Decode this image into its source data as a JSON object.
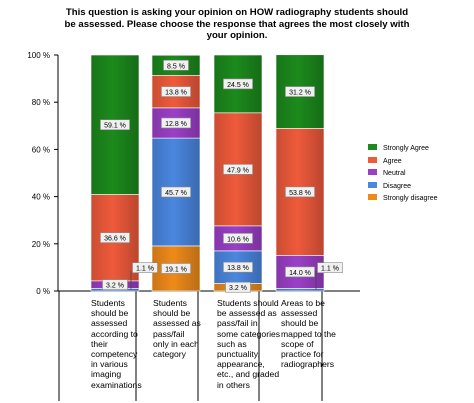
{
  "title_lines": [
    "This question is asking your opinion on HOW radiography students should",
    "be assessed.  Please choose the response that agrees the most closely with",
    "your opinion."
  ],
  "chart_data": {
    "type": "bar",
    "stacked": true,
    "orientation": "vertical",
    "categories": [
      "Students should be assessed according to their competency in various imaging examinations",
      "Students should be assessed as pass/fail only in each category",
      "Students should be assessed as pass/fail in some categories such as punctuality, appearance, etc., and graded in others",
      "Areas to be assessed should be mapped to the scope of practice for radiographers"
    ],
    "category_lines": [
      [
        "Students",
        "should be",
        "assessed",
        "according to",
        "their",
        "competency",
        "in various",
        "imaging",
        "examinations"
      ],
      [
        "Students",
        "should be",
        "assessed as",
        "pass/fail",
        "only in each",
        "category"
      ],
      [
        "Students should",
        "be assessed as",
        "pass/fail in",
        "some categories",
        "such as",
        "punctuality,",
        "appearance,",
        "etc., and graded",
        "in others"
      ],
      [
        "Areas to be",
        "assessed",
        "should be",
        "mapped to the",
        "scope of",
        "practice for",
        "radiographers"
      ]
    ],
    "series": [
      {
        "name": "Strongly disagree",
        "color": "#ee8a1a",
        "values": [
          0,
          19.1,
          3.2,
          0
        ],
        "labels": [
          "",
          "19.1 %",
          "3.2 %",
          ""
        ]
      },
      {
        "name": "Disagree",
        "color": "#4a87e0",
        "values": [
          1.1,
          45.7,
          13.8,
          1.1
        ],
        "labels": [
          "1.1 %",
          "45.7 %",
          "13.8 %",
          "1.1 %"
        ]
      },
      {
        "name": "Neutral",
        "color": "#9b3fc8",
        "values": [
          3.2,
          12.8,
          10.6,
          14.0
        ],
        "labels": [
          "3.2 %",
          "12.8 %",
          "10.6 %",
          "14.0 %"
        ]
      },
      {
        "name": "Agree",
        "color": "#ef5a3b",
        "values": [
          36.6,
          13.8,
          47.9,
          53.8
        ],
        "labels": [
          "36.6 %",
          "13.8 %",
          "47.9 %",
          "53.8 %"
        ]
      },
      {
        "name": "Strongly Agree",
        "color": "#1c8a1c",
        "values": [
          59.1,
          8.5,
          24.5,
          31.2
        ],
        "labels": [
          "59.1 %",
          "8.5 %",
          "24.5 %",
          "31.2 %"
        ]
      }
    ],
    "ylim": [
      0,
      100
    ],
    "yticks": [
      0,
      20,
      40,
      60,
      80,
      100
    ],
    "ytick_labels": [
      "0 %",
      "20 %",
      "40 %",
      "60 %",
      "80 %",
      "100 %"
    ],
    "grid": false,
    "legend_position": "right",
    "legend_order": [
      "Strongly Agree",
      "Agree",
      "Neutral",
      "Disagree",
      "Strongly disagree"
    ]
  }
}
